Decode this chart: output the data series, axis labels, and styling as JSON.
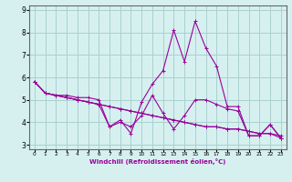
{
  "xlabel": "Windchill (Refroidissement éolien,°C)",
  "bg_color": "#d6f0f0",
  "grid_color": "#aad0d0",
  "line_color": "#990099",
  "spine_color": "#666666",
  "xlim": [
    -0.5,
    23.5
  ],
  "ylim": [
    2.8,
    9.2
  ],
  "yticks": [
    3,
    4,
    5,
    6,
    7,
    8,
    9
  ],
  "xticks": [
    0,
    1,
    2,
    3,
    4,
    5,
    6,
    7,
    8,
    9,
    10,
    11,
    12,
    13,
    14,
    15,
    16,
    17,
    18,
    19,
    20,
    21,
    22,
    23
  ],
  "series": [
    [
      5.8,
      5.3,
      5.2,
      5.2,
      5.1,
      5.1,
      5.0,
      3.8,
      4.1,
      3.5,
      4.9,
      5.7,
      6.3,
      8.1,
      6.7,
      8.5,
      7.3,
      6.5,
      4.7,
      4.7,
      3.4,
      3.4,
      3.9,
      3.3
    ],
    [
      5.8,
      5.3,
      5.2,
      5.1,
      5.0,
      4.9,
      4.8,
      3.8,
      4.0,
      3.8,
      4.3,
      5.2,
      4.4,
      3.7,
      4.3,
      5.0,
      5.0,
      4.8,
      4.6,
      4.5,
      3.4,
      3.4,
      3.9,
      3.3
    ],
    [
      5.8,
      5.3,
      5.2,
      5.1,
      5.0,
      4.9,
      4.8,
      4.7,
      4.6,
      4.5,
      4.4,
      4.3,
      4.2,
      4.1,
      4.0,
      3.9,
      3.8,
      3.8,
      3.7,
      3.7,
      3.6,
      3.5,
      3.5,
      3.4
    ],
    [
      5.8,
      5.3,
      5.2,
      5.1,
      5.0,
      4.9,
      4.8,
      4.7,
      4.6,
      4.5,
      4.4,
      4.3,
      4.2,
      4.1,
      4.0,
      3.9,
      3.8,
      3.8,
      3.7,
      3.7,
      3.6,
      3.5,
      3.5,
      3.3
    ]
  ]
}
